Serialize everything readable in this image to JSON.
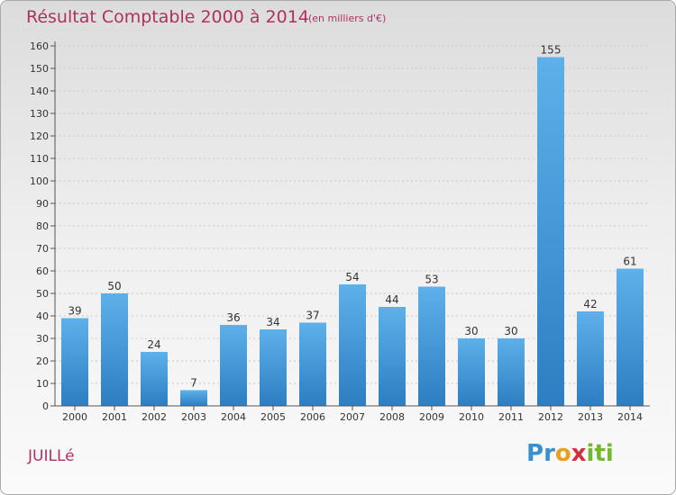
{
  "header": {
    "title": "Résultat Comptable 2000 à 2014",
    "subtitle": "(en milliers d'€)"
  },
  "footer": {
    "commune": "JUILLé",
    "logo_letters": [
      "P",
      "r",
      "o",
      "x",
      "i",
      "t",
      "i"
    ],
    "logo_colors": [
      "#3a8fd0",
      "#3a8fd0",
      "#e8a020",
      "#d03040",
      "#74b830",
      "#74b830",
      "#74b830"
    ]
  },
  "chart_data": {
    "type": "bar",
    "title": "Résultat Comptable 2000 à 2014",
    "subtitle": "(en milliers d'€)",
    "xlabel": "",
    "ylabel": "",
    "categories": [
      "2000",
      "2001",
      "2002",
      "2003",
      "2004",
      "2005",
      "2006",
      "2007",
      "2008",
      "2009",
      "2010",
      "2011",
      "2012",
      "2013",
      "2014"
    ],
    "values": [
      39,
      50,
      24,
      7,
      36,
      34,
      37,
      54,
      44,
      53,
      30,
      30,
      155,
      42,
      61
    ],
    "ylim": [
      0,
      160
    ],
    "yticks": [
      0,
      10,
      20,
      30,
      40,
      50,
      60,
      70,
      80,
      90,
      100,
      110,
      120,
      130,
      140,
      150,
      160
    ],
    "grid": true,
    "bar_color_light": "#5eb0ea",
    "bar_color_dark": "#2d7ec2"
  }
}
